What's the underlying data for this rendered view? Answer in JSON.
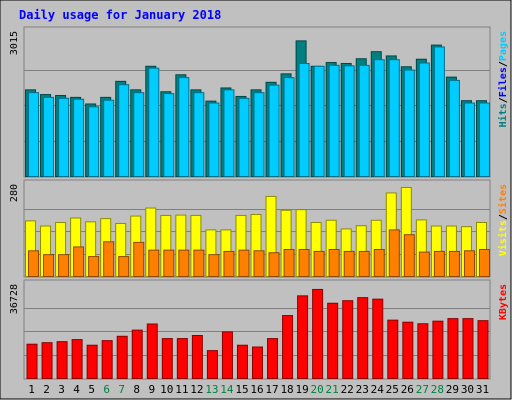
{
  "chart_data": {
    "type": "bar",
    "title": "Daily usage for January 2018",
    "days": [
      "1",
      "2",
      "3",
      "4",
      "5",
      "6",
      "7",
      "8",
      "9",
      "10",
      "11",
      "12",
      "13",
      "14",
      "15",
      "16",
      "17",
      "18",
      "19",
      "20",
      "21",
      "22",
      "23",
      "24",
      "25",
      "26",
      "27",
      "28",
      "29",
      "30",
      "31"
    ],
    "weekend_days": [
      "6",
      "7",
      "13",
      "14",
      "20",
      "21",
      "27",
      "28"
    ],
    "panels": [
      {
        "id": "hits",
        "ymax_label": "3015",
        "ymax": 3015,
        "legend": [
          {
            "label": "Pages",
            "color": "#00ccff"
          },
          {
            "label": "Files",
            "color": "#0000ff"
          },
          {
            "label": "Hits",
            "color": "#008080"
          }
        ],
        "series": [
          {
            "name": "Hits",
            "color": "#008080",
            "values": [
              1840,
              1740,
              1720,
              1680,
              1540,
              1680,
              2020,
              1840,
              2340,
              1800,
              2160,
              1840,
              1600,
              1880,
              1700,
              1840,
              2000,
              2180,
              2880,
              2340,
              2420,
              2400,
              2500,
              2650,
              2560,
              2330,
              2490,
              2790,
              2110,
              1610,
              1610
            ]
          },
          {
            "name": "Pages",
            "color": "#00ccff",
            "values": [
              1780,
              1680,
              1660,
              1640,
              1480,
              1620,
              1950,
              1780,
              2300,
              1760,
              2100,
              1780,
              1560,
              1840,
              1660,
              1780,
              1940,
              2100,
              2400,
              2340,
              2360,
              2350,
              2360,
              2480,
              2480,
              2260,
              2410,
              2750,
              2040,
              1560,
              1560
            ]
          }
        ]
      },
      {
        "id": "visits",
        "ymax_label": "280",
        "ymax": 280,
        "legend": [
          {
            "label": "Sites",
            "color": "#ff8000"
          },
          {
            "label": "Visits",
            "color": "#ffff00"
          }
        ],
        "series": [
          {
            "name": "Visits",
            "color": "#ffff00",
            "values": [
              173,
              157,
              168,
              182,
              170,
              180,
              165,
              188,
              213,
              190,
              191,
              190,
              145,
              145,
              190,
              193,
              249,
              206,
              208,
              168,
              175,
              148,
              158,
              175,
              260,
              277,
              176,
              157,
              157,
              155,
              168
            ]
          },
          {
            "name": "Sites",
            "color": "#ff8000",
            "values": [
              80,
              68,
              68,
              92,
              62,
              108,
              62,
              106,
              82,
              82,
              82,
              82,
              68,
              78,
              82,
              80,
              74,
              84,
              84,
              78,
              84,
              78,
              78,
              84,
              145,
              130,
              76,
              78,
              78,
              80,
              84
            ]
          }
        ]
      },
      {
        "id": "kbytes",
        "ymax_label": "36728",
        "ymax": 36728,
        "legend": [
          {
            "label": "KBytes",
            "color": "#ff0000"
          }
        ],
        "series": [
          {
            "name": "KBytes",
            "color": "#ff0000",
            "values": [
              13400,
              14000,
              14400,
              15200,
              13000,
              14800,
              16500,
              18900,
              21300,
              15600,
              15600,
              16800,
              10900,
              18200,
              13000,
              12300,
              15600,
              24600,
              32300,
              34800,
              29400,
              30400,
              31600,
              31000,
              22800,
              22000,
              21400,
              22400,
              23400,
              23400,
              22600
            ]
          }
        ]
      }
    ]
  }
}
